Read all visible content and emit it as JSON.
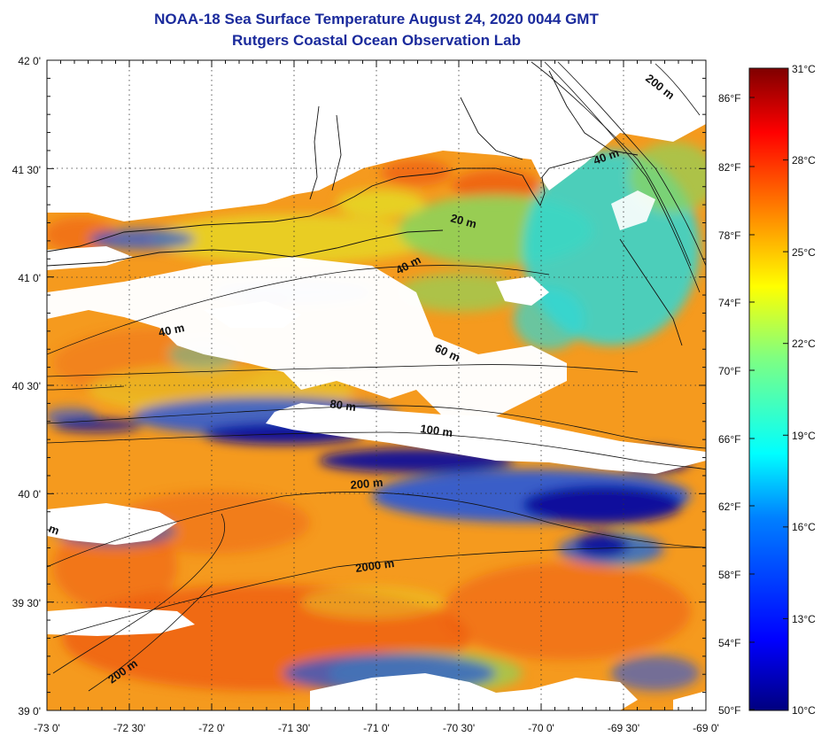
{
  "title": {
    "line1": "NOAA-18 Sea Surface Temperature August 24, 2020 0044 GMT",
    "line2": "Rutgers Coastal Ocean Observation Lab"
  },
  "map": {
    "lon_ticks": [
      "-73 0'",
      "-72 30'",
      "-72 0'",
      "-71 30'",
      "-71 0'",
      "-70 30'",
      "-70 0'",
      "-69 30'",
      "-69 0'"
    ],
    "lat_ticks": [
      "42 0'",
      "41 30'",
      "41 0'",
      "40 30'",
      "40 0'",
      "39 30'",
      "39 0'"
    ],
    "contour_labels": [
      {
        "text": "200 m",
        "angle": 38
      },
      {
        "text": "40 m",
        "angle": -20
      },
      {
        "text": "20 m",
        "angle": 15
      },
      {
        "text": "40 m",
        "angle": -28
      },
      {
        "text": "40 m",
        "angle": -12
      },
      {
        "text": "60 m",
        "angle": 25
      },
      {
        "text": "80 m",
        "angle": 8
      },
      {
        "text": "100 m",
        "angle": 8
      },
      {
        "text": "200 m",
        "angle": -5
      },
      {
        "text": "2000 m",
        "angle": -8
      },
      {
        "text": "200 m",
        "angle": -35
      },
      {
        "text": "m",
        "angle": 20
      }
    ],
    "colors": {
      "land_cloud": "#ffffff",
      "warm_orange": "#f59a1e",
      "red_orange": "#ee5a14",
      "yellow": "#e6d624",
      "green": "#8ed35a",
      "cyan": "#2fd7d6",
      "blue": "#1a54e6",
      "dark_blue": "#0a0d9a"
    }
  },
  "colorbar": {
    "celsius": [
      "31°C",
      "28°C",
      "25°C",
      "22°C",
      "19°C",
      "16°C",
      "13°C",
      "10°C"
    ],
    "fahrenheit": [
      "86°F",
      "82°F",
      "78°F",
      "74°F",
      "70°F",
      "66°F",
      "62°F",
      "58°F",
      "54°F",
      "50°F"
    ]
  }
}
